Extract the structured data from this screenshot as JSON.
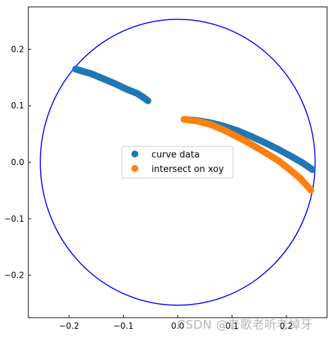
{
  "chart_data": {
    "type": "scatter",
    "xlim": [
      -0.275,
      0.275
    ],
    "ylim": [
      -0.275,
      0.275
    ],
    "x_ticks": [
      -0.2,
      -0.1,
      0.0,
      0.1,
      0.2
    ],
    "x_tick_labels": [
      "−0.2",
      "−0.1",
      "0.0",
      "0.1",
      "0.2"
    ],
    "y_ticks": [
      -0.2,
      -0.1,
      0.0,
      0.1,
      0.2
    ],
    "y_tick_labels": [
      "−0.2",
      "−0.1",
      "0.0",
      "0.1",
      "0.2"
    ],
    "grid": false,
    "legend_position": "center",
    "circle": {
      "center": [
        0,
        0
      ],
      "radius": 0.253,
      "color": "#0000ff"
    },
    "series": [
      {
        "name": "curve data",
        "color": "#1f77b4",
        "points": [
          [
            -0.188,
            0.165
          ],
          [
            -0.175,
            0.161
          ],
          [
            -0.16,
            0.157
          ],
          [
            -0.145,
            0.151
          ],
          [
            -0.13,
            0.145
          ],
          [
            -0.115,
            0.139
          ],
          [
            -0.1,
            0.132
          ],
          [
            -0.088,
            0.127
          ],
          [
            -0.075,
            0.122
          ],
          [
            -0.065,
            0.116
          ],
          [
            -0.055,
            0.109
          ],
          [
            0.012,
            0.076
          ],
          [
            0.035,
            0.074
          ],
          [
            0.06,
            0.07
          ],
          [
            0.085,
            0.064
          ],
          [
            0.11,
            0.056
          ],
          [
            0.135,
            0.046
          ],
          [
            0.16,
            0.035
          ],
          [
            0.185,
            0.023
          ],
          [
            0.21,
            0.01
          ],
          [
            0.23,
            -0.001
          ],
          [
            0.248,
            -0.013
          ]
        ]
      },
      {
        "name": "intersect on xoy",
        "color": "#ff7f0e",
        "points": [
          [
            0.012,
            0.076
          ],
          [
            0.035,
            0.073
          ],
          [
            0.06,
            0.067
          ],
          [
            0.085,
            0.057
          ],
          [
            0.11,
            0.045
          ],
          [
            0.135,
            0.032
          ],
          [
            0.16,
            0.018
          ],
          [
            0.185,
            0.003
          ],
          [
            0.205,
            -0.012
          ],
          [
            0.225,
            -0.028
          ],
          [
            0.245,
            -0.049
          ]
        ]
      }
    ]
  },
  "watermark": "CSDN @老歌老听老掉牙"
}
